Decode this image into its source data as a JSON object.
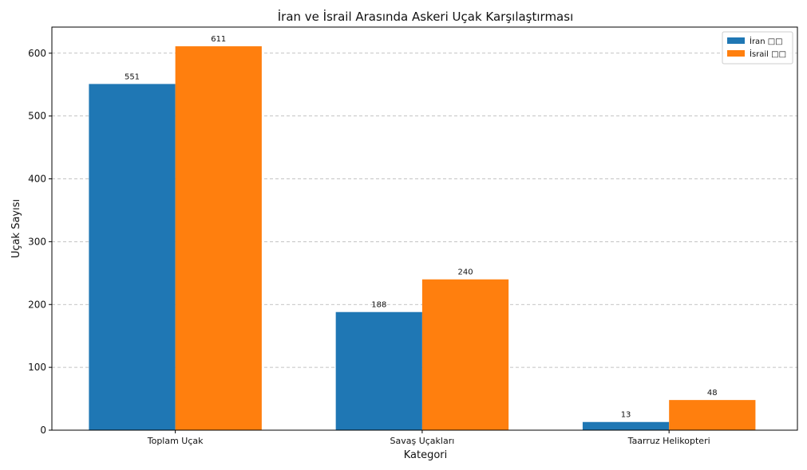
{
  "chart_data": {
    "type": "bar",
    "title": "İran ve İsrail Arasında Askeri Uçak Karşılaştırması",
    "xlabel": "Kategori",
    "ylabel": "Uçak Sayısı",
    "categories": [
      "Toplam Uçak",
      "Savaş Uçakları",
      "Taarruz Helikopteri"
    ],
    "series": [
      {
        "name": "İran □□",
        "values": [
          551,
          188,
          13
        ],
        "color": "#1f77b4"
      },
      {
        "name": "İsrail □□",
        "values": [
          611,
          240,
          48
        ],
        "color": "#ff7f0e"
      }
    ],
    "ylim": [
      0,
      641.55
    ],
    "yticks": [
      0,
      100,
      200,
      300,
      400,
      500,
      600
    ],
    "grid": "y-dashed",
    "legend": "top-right"
  }
}
